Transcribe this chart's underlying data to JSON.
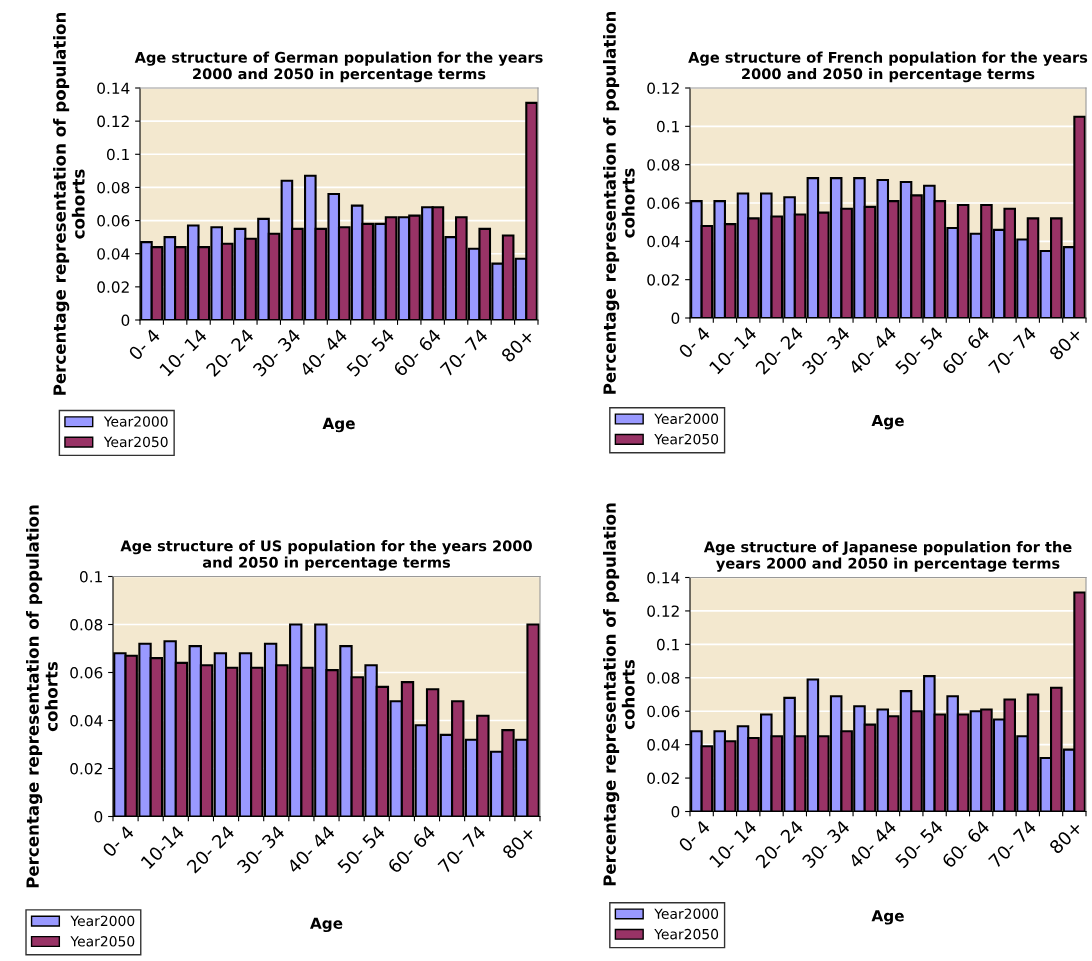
{
  "chart_data": [
    {
      "type": "bar",
      "title": "Age structure of German population for the years 2000 and 2050 in percentage terms",
      "xlabel": "Age",
      "ylabel": "Percentage representation of population cohorts",
      "categories": [
        "0- 4",
        null,
        "10- 14",
        null,
        "20- 24",
        null,
        "30- 34",
        null,
        "40- 44",
        null,
        "50- 54",
        null,
        "60- 64",
        null,
        "70- 74",
        null,
        "80+"
      ],
      "series": [
        {
          "name": "Year2000",
          "color": "#9999ff",
          "values": [
            0.047,
            0.05,
            0.057,
            0.056,
            0.055,
            0.061,
            0.084,
            0.087,
            0.076,
            0.069,
            0.058,
            0.062,
            0.068,
            0.05,
            0.043,
            0.034,
            0.037
          ]
        },
        {
          "name": "Year2050",
          "color": "#993366",
          "values": [
            0.044,
            0.044,
            0.044,
            0.046,
            0.049,
            0.052,
            0.055,
            0.055,
            0.056,
            0.058,
            0.062,
            0.063,
            0.068,
            0.062,
            0.055,
            0.051,
            0.131
          ]
        }
      ],
      "ylim": [
        0,
        0.14
      ],
      "yticks": [
        0,
        0.02,
        0.04,
        0.06,
        0.08,
        0.1,
        0.12,
        0.14
      ],
      "grid": "y",
      "legend": "bottom left"
    },
    {
      "type": "bar",
      "title": "Age structure of French population for the years 2000 and 2050 in percentage terms",
      "xlabel": "Age",
      "ylabel": "Percentage representation of population cohorts",
      "categories": [
        "0- 4",
        null,
        "10- 14",
        null,
        "20- 24",
        null,
        "30- 34",
        null,
        "40- 44",
        null,
        "50- 54",
        null,
        "60- 64",
        null,
        "70- 74",
        null,
        "80+"
      ],
      "series": [
        {
          "name": "Year2000",
          "color": "#9999ff",
          "values": [
            0.061,
            0.061,
            0.065,
            0.065,
            0.063,
            0.073,
            0.073,
            0.073,
            0.072,
            0.071,
            0.069,
            0.047,
            0.044,
            0.046,
            0.041,
            0.035,
            0.037
          ]
        },
        {
          "name": "Year2050",
          "color": "#993366",
          "values": [
            0.048,
            0.049,
            0.052,
            0.053,
            0.054,
            0.055,
            0.057,
            0.058,
            0.061,
            0.064,
            0.061,
            0.059,
            0.059,
            0.057,
            0.052,
            0.052,
            0.105
          ]
        }
      ],
      "ylim": [
        0,
        0.12
      ],
      "yticks": [
        0,
        0.02,
        0.04,
        0.06,
        0.08,
        0.1,
        0.12
      ],
      "grid": "y",
      "legend": "bottom left"
    },
    {
      "type": "bar",
      "title": "Age structure of US population for the years 2000 and 2050 in percentage terms",
      "xlabel": "Age",
      "ylabel": "Percentage representation of population cohorts",
      "categories": [
        "0- 4",
        null,
        "10-14",
        null,
        "20- 24",
        null,
        "30- 34",
        null,
        "40- 44",
        null,
        "50- 54",
        null,
        "60- 64",
        null,
        "70- 74",
        null,
        "80+"
      ],
      "series": [
        {
          "name": "Year2000",
          "color": "#9999ff",
          "values": [
            0.068,
            0.072,
            0.073,
            0.071,
            0.068,
            0.068,
            0.072,
            0.08,
            0.08,
            0.071,
            0.063,
            0.048,
            0.038,
            0.034,
            0.032,
            0.027,
            0.032
          ]
        },
        {
          "name": "Year2050",
          "color": "#993366",
          "values": [
            0.067,
            0.066,
            0.064,
            0.063,
            0.062,
            0.062,
            0.063,
            0.062,
            0.061,
            0.058,
            0.054,
            0.056,
            0.053,
            0.048,
            0.042,
            0.036,
            0.08
          ]
        }
      ],
      "ylim": [
        0,
        0.1
      ],
      "yticks": [
        0,
        0.02,
        0.04,
        0.06,
        0.08,
        0.1
      ],
      "grid": "y",
      "legend": "bottom left"
    },
    {
      "type": "bar",
      "title": "Age structure of Japanese population for the years 2000 and 2050 in percentage terms",
      "xlabel": "Age",
      "ylabel": "Percentage representation of population cohorts",
      "categories": [
        "0- 4",
        null,
        "10- 14",
        null,
        "20- 24",
        null,
        "30- 34",
        null,
        "40- 44",
        null,
        "50- 54",
        null,
        "60- 64",
        null,
        "70- 74",
        null,
        "80+"
      ],
      "series": [
        {
          "name": "Year2000",
          "color": "#9999ff",
          "values": [
            0.048,
            0.048,
            0.051,
            0.058,
            0.068,
            0.079,
            0.069,
            0.063,
            0.061,
            0.072,
            0.081,
            0.069,
            0.06,
            0.055,
            0.045,
            0.032,
            0.037
          ]
        },
        {
          "name": "Year2050",
          "color": "#993366",
          "values": [
            0.039,
            0.042,
            0.044,
            0.045,
            0.045,
            0.045,
            0.048,
            0.052,
            0.057,
            0.06,
            0.058,
            0.058,
            0.061,
            0.067,
            0.07,
            0.074,
            0.131
          ]
        }
      ],
      "ylim": [
        0,
        0.14
      ],
      "yticks": [
        0,
        0.02,
        0.04,
        0.06,
        0.08,
        0.1,
        0.12,
        0.14
      ],
      "grid": "y",
      "legend": "bottom left"
    }
  ]
}
